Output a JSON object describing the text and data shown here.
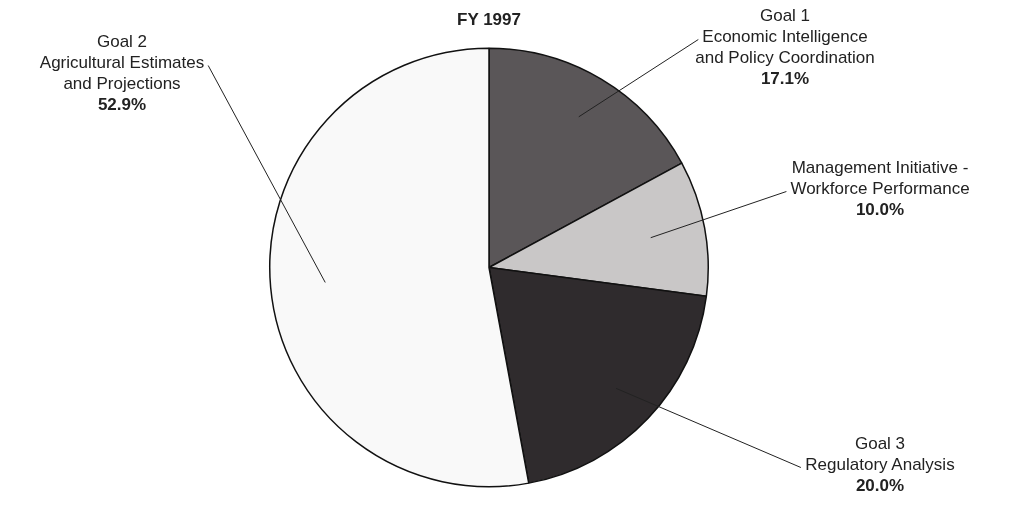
{
  "chart_data": {
    "type": "pie",
    "title": "FY 1997",
    "categories": [
      "Goal 1\nEconomic Intelligence\nand Policy Coordination",
      "Management Initiative -\nWorkforce Performance",
      "Goal 3\nRegulatory Analysis",
      "Goal 2\nAgricultural Estimates\nand Projections"
    ],
    "values": [
      17.1,
      10.0,
      20.0,
      52.9
    ],
    "colors": [
      "#5a5658",
      "#c9c7c7",
      "#2f2b2d",
      "#f9f9f9"
    ],
    "value_labels": [
      "17.1%",
      "10.0%",
      "20.0%",
      "52.9%"
    ],
    "legend": false
  }
}
